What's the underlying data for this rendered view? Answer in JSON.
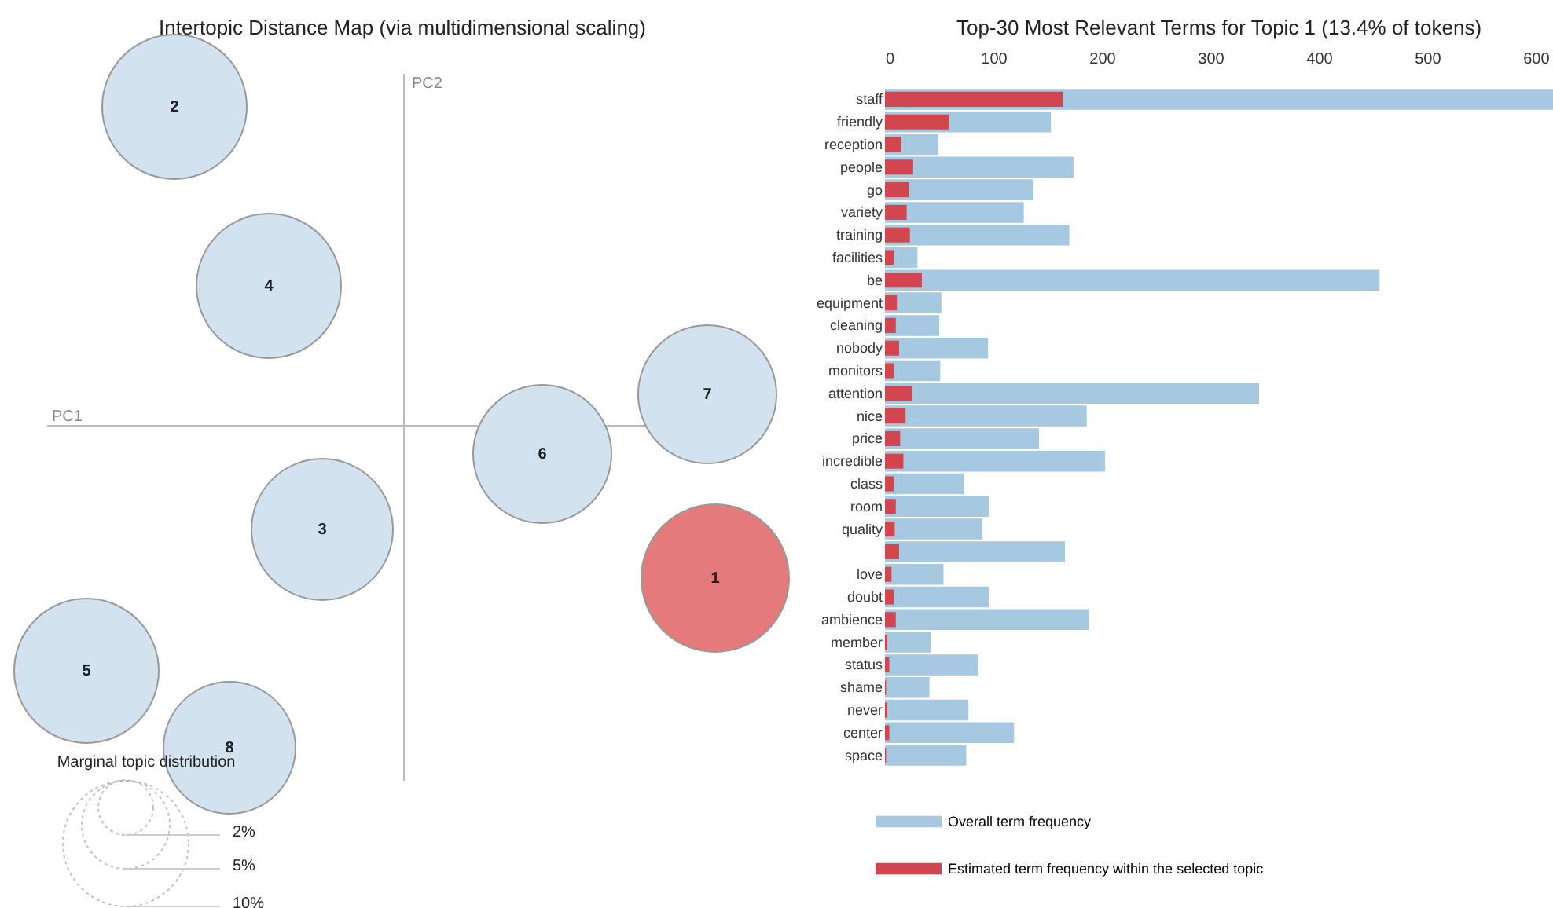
{
  "chart_data": [
    {
      "type": "other",
      "title": "Intertopic Distance Map (via multidimensional scaling)",
      "xlabel": "PC1",
      "ylabel": "PC2",
      "legend_title": "Marginal topic distribution",
      "annotations": [
        "1",
        "2",
        "3",
        "4",
        "5",
        "6",
        "7",
        "8",
        "2%",
        "5%",
        "10%"
      ],
      "colors": [
        "#e57a7a",
        "#d2e2ef",
        "#d2e2ef",
        "#d2e2ef",
        "#d2e2ef",
        "#d2e2ef",
        "#d2e2ef",
        "#d2e2ef"
      ]
    },
    {
      "type": "bar",
      "orientation": "horizontal",
      "title": "Top-30 Most Relevant Terms for Topic 1 (13.4% of tokens)",
      "legend": "bottom left",
      "categories": [
        "staff",
        "friendly",
        "reception",
        "people",
        "go",
        "variety",
        "training",
        "facilities",
        "be",
        "equipment",
        "cleaning",
        "nobody",
        "monitors",
        "attention",
        "nice",
        "price",
        "incredible",
        "class",
        "room",
        "quality",
        null,
        "love",
        "doubt",
        "ambience",
        "member",
        "status",
        "shame",
        "never",
        "center",
        "space"
      ],
      "xlim": [
        0,
        616
      ],
      "xticks": [
        0,
        100,
        200,
        300,
        400,
        500,
        600
      ],
      "series": [
        {
          "name": "Overall term frequency",
          "color": "#a6c8e0",
          "values": [
            616,
            153,
            49,
            174,
            137,
            128,
            170,
            30,
            456,
            52,
            50,
            95,
            51,
            345,
            186,
            142,
            203,
            73,
            96,
            90,
            166,
            54,
            96,
            188,
            42,
            86,
            41,
            77,
            119,
            75
          ]
        },
        {
          "name": "Estimated term frequency within the selected topic",
          "color": "#d1464f",
          "values": [
            164,
            59,
            15,
            26,
            22,
            20,
            23,
            8,
            34,
            11,
            10,
            13,
            8,
            25,
            19,
            14,
            17,
            8,
            10,
            9,
            13,
            6,
            8,
            10,
            2,
            4,
            1,
            2,
            4,
            1
          ]
        }
      ]
    }
  ]
}
